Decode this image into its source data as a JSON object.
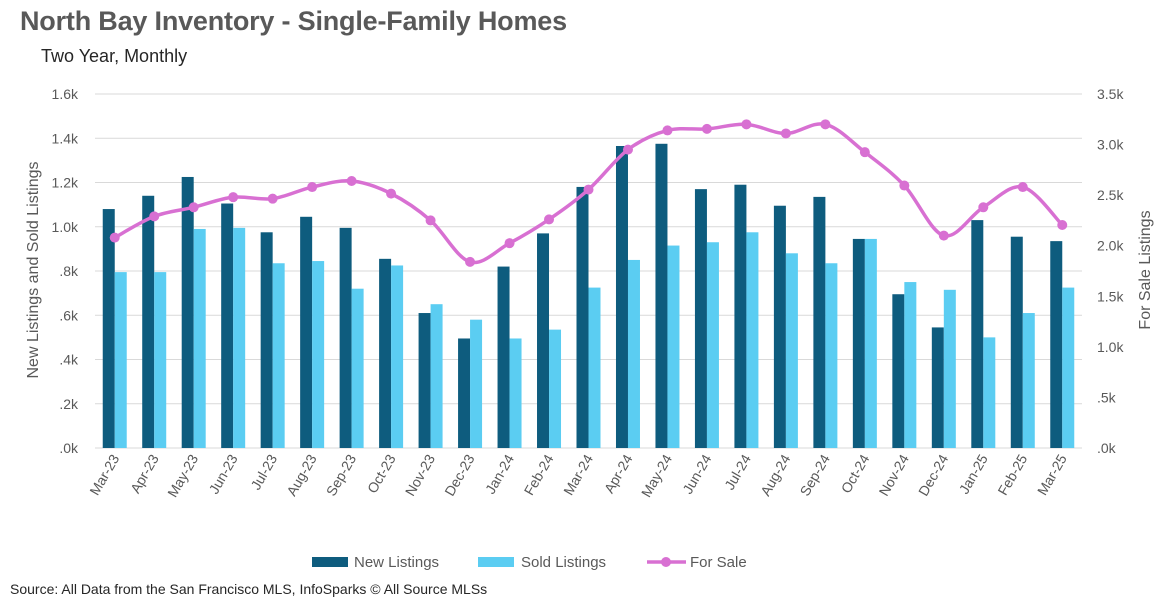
{
  "title": "North Bay Inventory - Single-Family Homes",
  "subtitle": "Two Year, Monthly",
  "source": "Source: All Data from the San Francisco MLS, InfoSparks © All Source MLSs",
  "chart_data": {
    "type": "bar",
    "categories": [
      "Mar-23",
      "Apr-23",
      "May-23",
      "Jun-23",
      "Jul-23",
      "Aug-23",
      "Sep-23",
      "Oct-23",
      "Nov-23",
      "Dec-23",
      "Jan-24",
      "Feb-24",
      "Mar-24",
      "Apr-24",
      "May-24",
      "Jun-24",
      "Jul-24",
      "Aug-24",
      "Sep-24",
      "Oct-24",
      "Nov-24",
      "Dec-24",
      "Jan-25",
      "Feb-25",
      "Mar-25"
    ],
    "series": [
      {
        "name": "New Listings",
        "type": "bar",
        "axis": "left",
        "color": "#0E5C7E",
        "values": [
          1080,
          1140,
          1225,
          1105,
          975,
          1045,
          995,
          855,
          610,
          495,
          820,
          970,
          1180,
          1365,
          1375,
          1170,
          1190,
          1095,
          1135,
          945,
          695,
          545,
          1030,
          955,
          935
        ]
      },
      {
        "name": "Sold Listings",
        "type": "bar",
        "axis": "left",
        "color": "#5BCDF2",
        "values": [
          795,
          795,
          990,
          995,
          835,
          845,
          720,
          825,
          650,
          580,
          495,
          535,
          725,
          850,
          915,
          930,
          975,
          880,
          835,
          945,
          750,
          715,
          500,
          610,
          725
        ]
      },
      {
        "name": "For Sale",
        "type": "line",
        "axis": "right",
        "color": "#D870D2",
        "values": [
          2080,
          2290,
          2380,
          2480,
          2465,
          2580,
          2640,
          2515,
          2250,
          1840,
          2025,
          2260,
          2555,
          2950,
          3140,
          3155,
          3200,
          3110,
          3200,
          2925,
          2595,
          2100,
          2380,
          2580,
          2205
        ]
      }
    ],
    "ylabel": "New Listings and Sold Listings",
    "y2label": "For Sale Listings",
    "ylim": [
      0,
      1600
    ],
    "y2lim": [
      0,
      3500
    ],
    "yticks": [
      ".0k",
      ".2k",
      ".4k",
      ".6k",
      ".8k",
      "1.0k",
      "1.2k",
      "1.4k",
      "1.6k"
    ],
    "y2ticks": [
      ".0k",
      ".5k",
      "1.0k",
      "1.5k",
      "2.0k",
      "2.5k",
      "3.0k",
      "3.5k"
    ],
    "grid": true,
    "legend_position": "bottom"
  }
}
